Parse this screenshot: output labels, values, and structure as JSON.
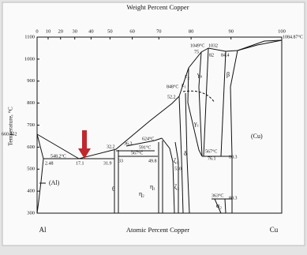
{
  "top_axis": {
    "title": "Weight Percent Copper",
    "ticks": [
      0,
      10,
      20,
      30,
      40,
      50,
      60,
      70,
      80,
      90,
      100
    ]
  },
  "left_axis": {
    "title": "Temperature, °C",
    "ticks": [
      300,
      400,
      500,
      600,
      700,
      800,
      900,
      1000,
      1100
    ]
  },
  "bottom_axis": {
    "title": "Atomic Percent Copper",
    "left_label": "Al",
    "right_label": "Cu"
  },
  "annotations": [
    "660.452",
    "1084.87°C",
    "1049°C",
    "1032",
    "75",
    "82",
    "84.4",
    "γ₀",
    "β",
    "848°C",
    "52.2",
    "548.2°C",
    "2.48",
    "17.1",
    "32.2",
    "31.9",
    "33",
    "36.3",
    "624°C",
    "591°C",
    "567°C",
    "49.8",
    "530",
    "567°C",
    "76.1",
    "80.3",
    "γ₁",
    "(Cu)",
    "(Al)",
    "θ",
    "η₂",
    "η₁",
    "δ",
    "ζ₁",
    "ζ₂",
    "ε₁",
    "ε₂",
    "363°C",
    "80.3",
    "α₂"
  ]
}
